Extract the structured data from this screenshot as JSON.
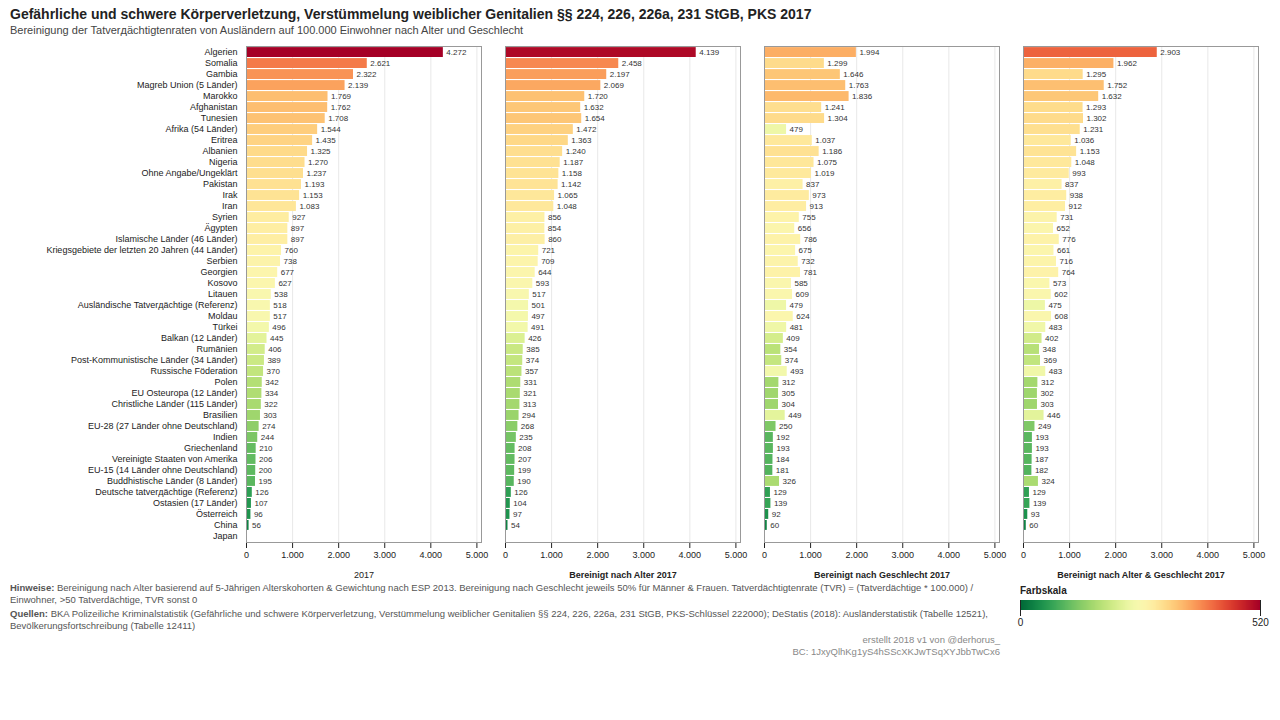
{
  "chart_data": {
    "type": "bar",
    "orientation": "horizontal",
    "title": "Gefährliche und schwere Körperverletzung, Verstümmelung weiblicher Genitalien §§ 224, 226, 226a, 231 StGB, PKS 2017",
    "subtitle": "Bereinigung der Tatverдächtigtenraten von Ausländern auf 100.000 Einwohner nach Alter und Geschlecht",
    "footnotes": [
      {
        "bold": "Hinweise:",
        "text": " Bereinigung nach Alter basierend auf 5-Jährigen Alterskohorten & Gewichtung nach ESP 2013. Bereinigung nach Geschlecht jeweils 50% für Männer & Frauen. Tatverdächtigtenrate (TVR) = (Tatverdächtige * 100.000) / Einwohner, >50 Tatverdächtige, TVR sonst 0"
      },
      {
        "bold": "Quellen:",
        "text": " BKA Polizeiliche Kriminalstatistik (Gefährliche und schwere Körperverletzung, Verstümmelung weiblicher Genitalien §§ 224, 226, 226a, 231 StGB, PKS-Schlüssel 222000); DeStatis (2018): Ausländerstatistik (Tabelle 12521), Bevölkerungsfortschreibung (Tabelle 12411)"
      }
    ],
    "credits": [
      "erstellt 2018 v1 von @derhorus_",
      "BC: 1JxyQlhKg1yS4hSScXKJwTSqXYJbbTwCx6"
    ],
    "categories": [
      "Algerien",
      "Somalia",
      "Gambia",
      "Magreb Union (5 Länder)",
      "Marokko",
      "Afghanistan",
      "Tunesien",
      "Afrika (54 Länder)",
      "Eritrea",
      "Albanien",
      "Nigeria",
      "Ohne Angabe/Ungeklärt",
      "Pakistan",
      "Irak",
      "Iran",
      "Syrien",
      "Ägypten",
      "Islamische Länder (46 Länder)",
      "Kriegsgebiete der letzten 20 Jahren (44 Länder)",
      "Serbien",
      "Georgien",
      "Kosovo",
      "Litauen",
      "Ausländische Tatverдächtige (Referenz)",
      "Moldau",
      "Türkei",
      "Balkan (12 Länder)",
      "Rumänien",
      "Post-Kommunistische Länder (34 Länder)",
      "Russische Föderation",
      "Polen",
      "EU Osteuropa (12 Länder)",
      "Christliche Länder (115 Länder)",
      "Brasilien",
      "EU-28 (27 Länder ohne Deutschland)",
      "Indien",
      "Griechenland",
      "Vereinigte Staaten von Amerika",
      "EU-15 (14 Länder ohne Deutschland)",
      "Buddhistische Länder (8 Länder)",
      "Deutsche tatverдächtige (Referenz)",
      "Ostasien (17 Länder)",
      "Österreich",
      "China",
      "Japan"
    ],
    "series": [
      {
        "name": "2017",
        "values": [
          4272,
          2621,
          2322,
          2139,
          1769,
          1762,
          1708,
          1544,
          1435,
          1325,
          1270,
          1237,
          1193,
          1153,
          1083,
          927,
          897,
          897,
          760,
          738,
          677,
          627,
          538,
          518,
          517,
          496,
          445,
          406,
          389,
          370,
          342,
          334,
          322,
          303,
          274,
          244,
          210,
          206,
          200,
          195,
          126,
          107,
          96,
          56,
          0
        ],
        "value_labels": [
          "4.272",
          "2.621",
          "2.322",
          "2.139",
          "1.769",
          "1.762",
          "1.708",
          "1.544",
          "1.435",
          "1.325",
          "1.270",
          "1.237",
          "1.193",
          "1.153",
          "1.083",
          "927",
          "897",
          "897",
          "760",
          "738",
          "677",
          "627",
          "538",
          "518",
          "517",
          "496",
          "445",
          "406",
          "389",
          "370",
          "342",
          "334",
          "322",
          "303",
          "274",
          "244",
          "210",
          "206",
          "200",
          "195",
          "126",
          "107",
          "96",
          "56",
          null
        ]
      },
      {
        "name": "Bereinigt nach Alter 2017",
        "values": [
          4139,
          2458,
          2197,
          2069,
          1720,
          1632,
          1654,
          1472,
          1363,
          1240,
          1187,
          1158,
          1142,
          1065,
          1048,
          856,
          854,
          860,
          721,
          709,
          644,
          593,
          517,
          501,
          497,
          491,
          426,
          385,
          374,
          357,
          331,
          321,
          313,
          294,
          268,
          235,
          208,
          207,
          199,
          190,
          126,
          104,
          97,
          54,
          0
        ],
        "value_labels": [
          "4.139",
          "2.458",
          "2.197",
          "2.069",
          "1.720",
          "1.632",
          "1.654",
          "1.472",
          "1.363",
          "1.240",
          "1.187",
          "1.158",
          "1.142",
          "1.065",
          "1.048",
          "856",
          "854",
          "860",
          "721",
          "709",
          "644",
          "593",
          "517",
          "501",
          "497",
          "491",
          "426",
          "385",
          "374",
          "357",
          "331",
          "321",
          "313",
          "294",
          "268",
          "235",
          "208",
          "207",
          "199",
          "190",
          "126",
          "104",
          "97",
          "54",
          null
        ]
      },
      {
        "name": "Bereinigt nach Geschlecht 2017",
        "values": [
          1994,
          1299,
          1646,
          1763,
          1836,
          1241,
          1304,
          479,
          1037,
          1186,
          1075,
          1019,
          837,
          973,
          913,
          755,
          656,
          786,
          675,
          732,
          781,
          585,
          609,
          479,
          624,
          481,
          409,
          354,
          374,
          493,
          312,
          305,
          304,
          449,
          250,
          192,
          193,
          184,
          181,
          326,
          129,
          139,
          92,
          60,
          0
        ],
        "value_labels": [
          "1.994",
          "1.299",
          "1.646",
          "1.763",
          "1.836",
          "1.241",
          "1.304",
          "479",
          "1.037",
          "1.186",
          "1.075",
          "1.019",
          "837",
          "973",
          "913",
          "755",
          "656",
          "786",
          "675",
          "732",
          "781",
          "585",
          "609",
          "479",
          "624",
          "481",
          "409",
          "354",
          "374",
          "493",
          "312",
          "305",
          "304",
          "449",
          "250",
          "192",
          "193",
          "184",
          "181",
          "326",
          "129",
          "139",
          "92",
          "60",
          null
        ]
      },
      {
        "name": "Bereinigt nach Alter & Geschlecht 2017",
        "values": [
          2903,
          1962,
          1295,
          1752,
          1632,
          1293,
          1302,
          1231,
          1036,
          1153,
          1048,
          993,
          837,
          938,
          912,
          731,
          652,
          776,
          661,
          716,
          764,
          573,
          602,
          475,
          608,
          483,
          402,
          348,
          369,
          483,
          312,
          302,
          303,
          446,
          249,
          193,
          193,
          187,
          182,
          324,
          129,
          139,
          93,
          60,
          0
        ],
        "value_labels": [
          "2.903",
          "1.962",
          "1.295",
          "1.752",
          "1.632",
          "1.293",
          "1.302",
          "1.231",
          "1.036",
          "1.153",
          "1.048",
          "993",
          "837",
          "938",
          "912",
          "731",
          "652",
          "776",
          "661",
          "716",
          "764",
          "573",
          "602",
          "475",
          "608",
          "483",
          "402",
          "348",
          "369",
          "483",
          "312",
          "302",
          "303",
          "446",
          "249",
          "193",
          "193",
          "187",
          "182",
          "324",
          "129",
          "139",
          "93",
          "60",
          null
        ]
      }
    ],
    "xlim": [
      0,
      5100
    ],
    "xticks": [
      0,
      {
        "value": 1000,
        "label": "1.000"
      },
      {
        "value": 2000,
        "label": "2.000"
      },
      {
        "value": 3000,
        "label": "3.000"
      },
      {
        "value": 4000,
        "label": "4.000"
      },
      {
        "value": 5000,
        "label": "5.000"
      }
    ],
    "grid": true,
    "data_labels": true,
    "colorbar": {
      "label": "Farbskala",
      "range": [
        0,
        520
      ],
      "ticks": [
        0,
        520
      ]
    }
  }
}
